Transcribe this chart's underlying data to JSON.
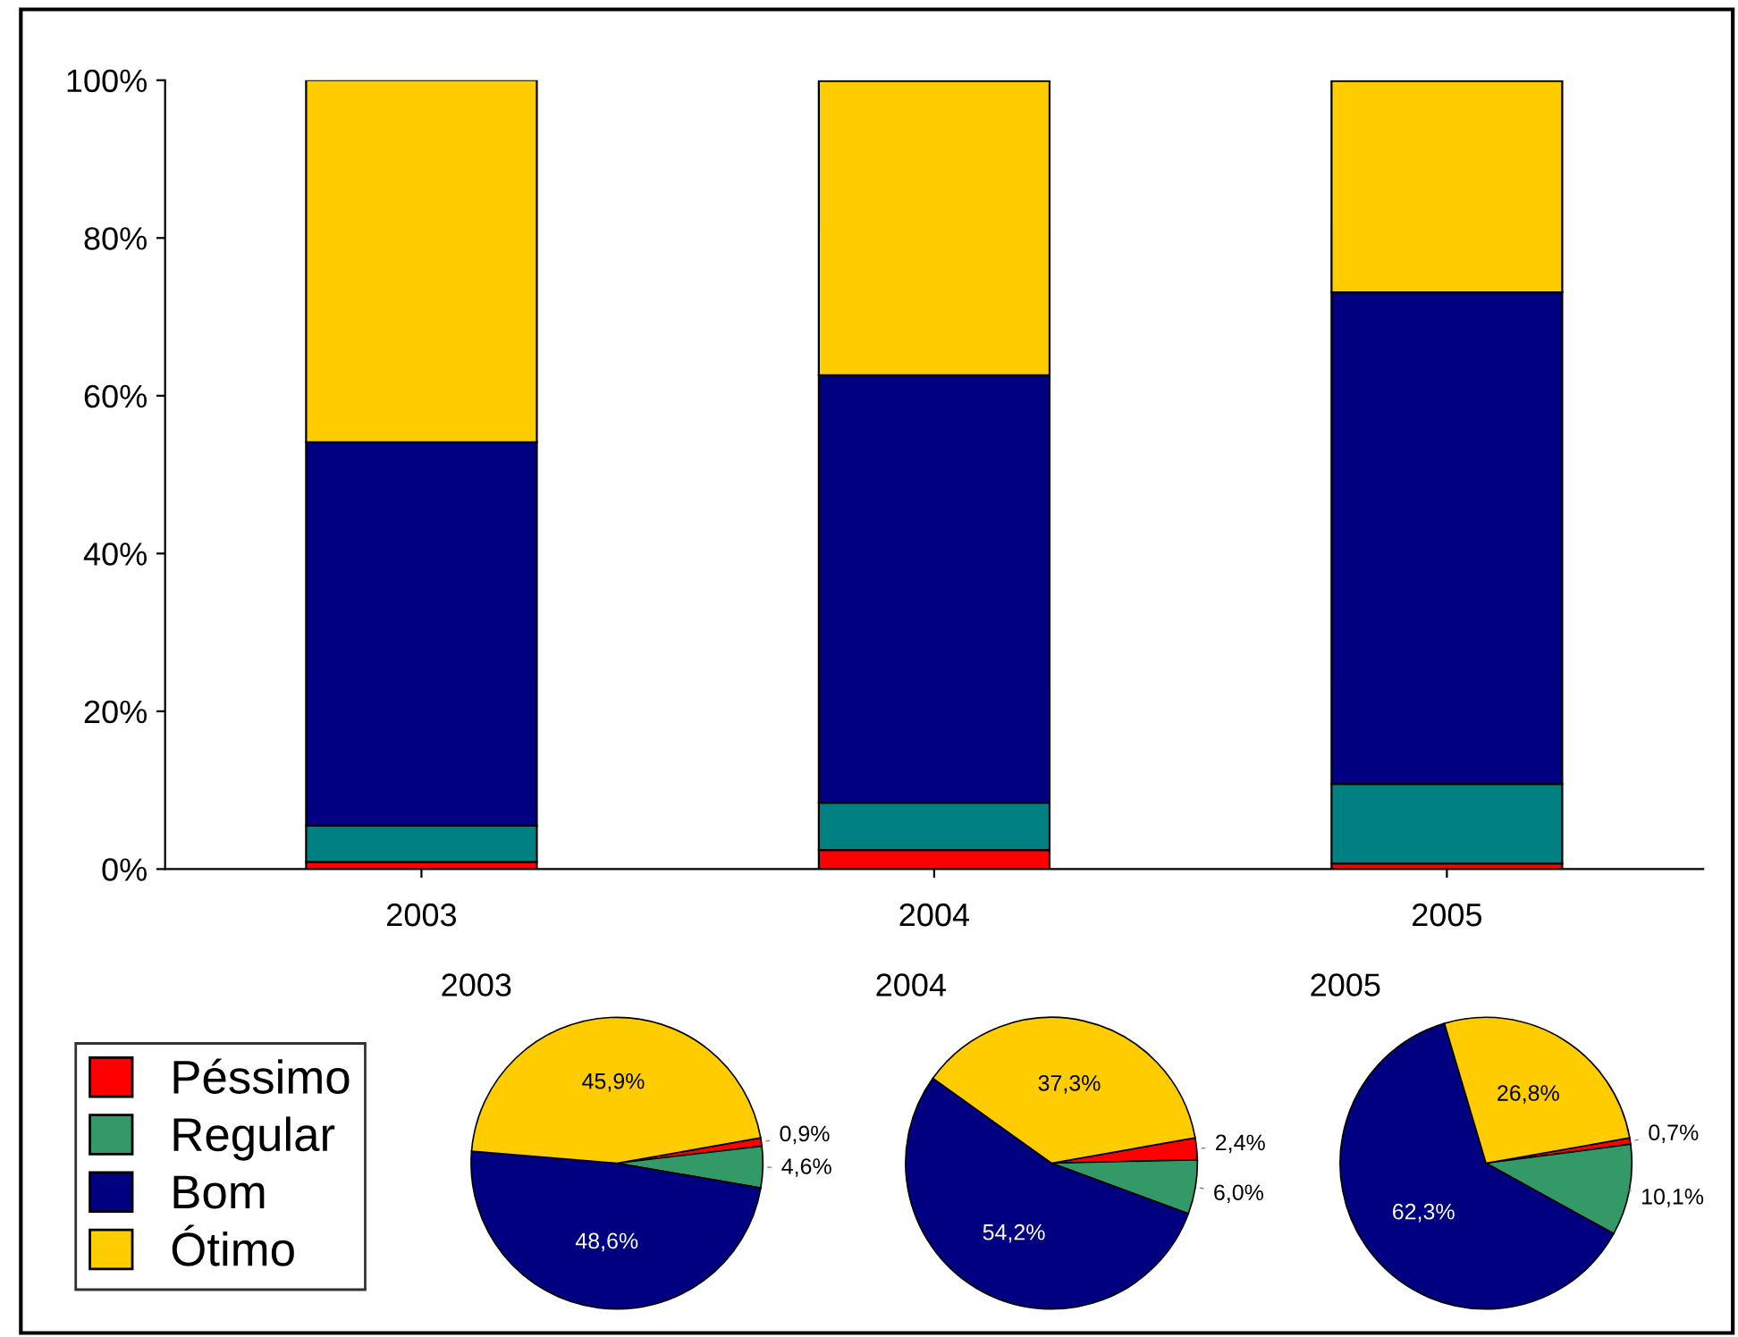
{
  "chart_data": [
    {
      "type": "bar",
      "stacked": true,
      "categories": [
        "2003",
        "2004",
        "2005"
      ],
      "series": [
        {
          "color": "#ff0000",
          "values": [
            0.9,
            2.4,
            0.7
          ]
        },
        {
          "color": "#008080",
          "values": [
            4.6,
            6.0,
            10.1
          ]
        },
        {
          "color": "#000080",
          "values": [
            48.6,
            54.2,
            62.3
          ]
        },
        {
          "color": "#ffcc00",
          "values": [
            45.9,
            37.3,
            26.8
          ]
        }
      ],
      "ylim": [
        0,
        100
      ],
      "yticks": [
        {
          "value": 0,
          "label": "0%"
        },
        {
          "value": 20,
          "label": "20%"
        },
        {
          "value": 40,
          "label": "40%"
        },
        {
          "value": 60,
          "label": "60%"
        },
        {
          "value": 80,
          "label": "80%"
        },
        {
          "value": 100,
          "label": "100%"
        }
      ]
    },
    {
      "type": "pie",
      "title": "2003",
      "categories": [
        "Péssimo",
        "Regular",
        "Bom",
        "Ótimo"
      ],
      "values": [
        0.9,
        4.6,
        48.6,
        45.9
      ],
      "colors": [
        "#ff0000",
        "#339966",
        "#000080",
        "#ffcc00"
      ],
      "value_labels": [
        "0,9%",
        "4,6%",
        "48,6%",
        "45,9%"
      ],
      "legend": "left"
    },
    {
      "type": "pie",
      "title": "2004",
      "categories": [
        null,
        null,
        null,
        null
      ],
      "values": [
        2.4,
        6.0,
        54.2,
        37.3
      ],
      "colors": [
        "#ff0000",
        "#339966",
        "#000080",
        "#ffcc00"
      ],
      "value_labels": [
        "2,4%",
        "6,0%",
        "54,2%",
        "37,3%"
      ]
    },
    {
      "type": "pie",
      "title": "2005",
      "categories": [
        null,
        null,
        null,
        null
      ],
      "values": [
        0.7,
        10.1,
        62.3,
        26.8
      ],
      "colors": [
        "#ff0000",
        "#339966",
        "#000080",
        "#ffcc00"
      ],
      "value_labels": [
        "0,7%",
        "10,1%",
        "62,3%",
        "26,8%"
      ]
    }
  ]
}
